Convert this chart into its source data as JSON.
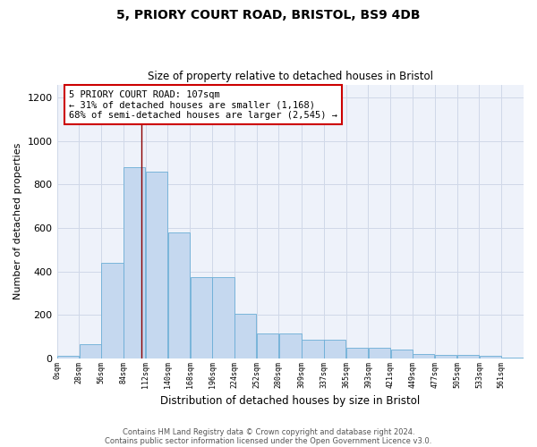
{
  "title_line1": "5, PRIORY COURT ROAD, BRISTOL, BS9 4DB",
  "title_line2": "Size of property relative to detached houses in Bristol",
  "xlabel": "Distribution of detached houses by size in Bristol",
  "ylabel": "Number of detached properties",
  "bar_values": [
    12,
    65,
    440,
    880,
    860,
    580,
    375,
    375,
    205,
    115,
    115,
    85,
    85,
    50,
    50,
    40,
    22,
    15,
    15,
    10,
    5
  ],
  "bin_edges": [
    0,
    28,
    56,
    84,
    112,
    140,
    168,
    196,
    224,
    252,
    280,
    309,
    337,
    365,
    393,
    421,
    449,
    477,
    505,
    533,
    561,
    589
  ],
  "bar_color": "#c5d8ef",
  "bar_edge_color": "#6baed6",
  "property_line_x": 107,
  "property_line_color": "#8b0000",
  "annotation_text": "5 PRIORY COURT ROAD: 107sqm\n← 31% of detached houses are smaller (1,168)\n68% of semi-detached houses are larger (2,545) →",
  "annotation_box_color": "#ffffff",
  "annotation_box_edge_color": "#cc0000",
  "ylim": [
    0,
    1260
  ],
  "yticks": [
    0,
    200,
    400,
    600,
    800,
    1000,
    1200
  ],
  "footer_line1": "Contains HM Land Registry data © Crown copyright and database right 2024.",
  "footer_line2": "Contains public sector information licensed under the Open Government Licence v3.0.",
  "background_color": "#ffffff",
  "axes_bg_color": "#eef2fa",
  "grid_color": "#d0d8e8"
}
